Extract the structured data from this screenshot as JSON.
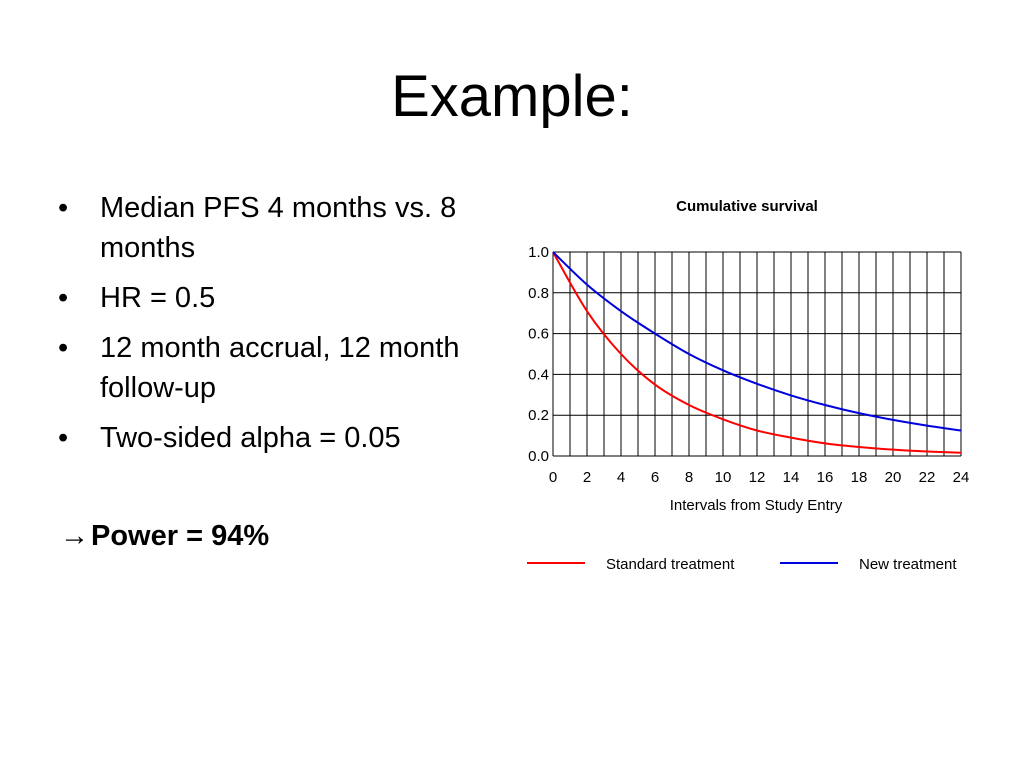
{
  "slide": {
    "title": "Example:",
    "bullets": [
      "Median PFS 4 months vs. 8 months",
      "HR = 0.5",
      "12 month accrual, 12 month follow-up",
      "Two-sided alpha = 0.05"
    ],
    "bullet_symbol": "•",
    "conclusion_arrow": "→",
    "conclusion": "Power = 94%"
  },
  "chart_data": {
    "type": "line",
    "title": "Cumulative survival",
    "xlabel": "Intervals from Study Entry",
    "ylabel": "",
    "xlim": [
      0,
      24
    ],
    "ylim": [
      0,
      1
    ],
    "x_ticks": [
      0,
      2,
      4,
      6,
      8,
      10,
      12,
      14,
      16,
      18,
      20,
      22,
      24
    ],
    "y_ticks": [
      0.0,
      0.2,
      0.4,
      0.6,
      0.8,
      1.0
    ],
    "y_tick_labels": [
      "0.0",
      "0.2",
      "0.4",
      "0.6",
      "0.8",
      "1.0"
    ],
    "grid": true,
    "x_grid_step": 1,
    "legend_position": "bottom",
    "x": [
      0,
      2,
      4,
      6,
      8,
      10,
      12,
      14,
      16,
      18,
      20,
      22,
      24
    ],
    "series": [
      {
        "name": "Standard treatment",
        "color": "#ff0000",
        "values": [
          1.0,
          0.71,
          0.5,
          0.35,
          0.25,
          0.18,
          0.125,
          0.09,
          0.062,
          0.044,
          0.031,
          0.022,
          0.016
        ]
      },
      {
        "name": "New treatment",
        "color": "#0000dd",
        "values": [
          1.0,
          0.84,
          0.71,
          0.6,
          0.5,
          0.42,
          0.354,
          0.297,
          0.25,
          0.21,
          0.177,
          0.149,
          0.125
        ]
      }
    ]
  }
}
